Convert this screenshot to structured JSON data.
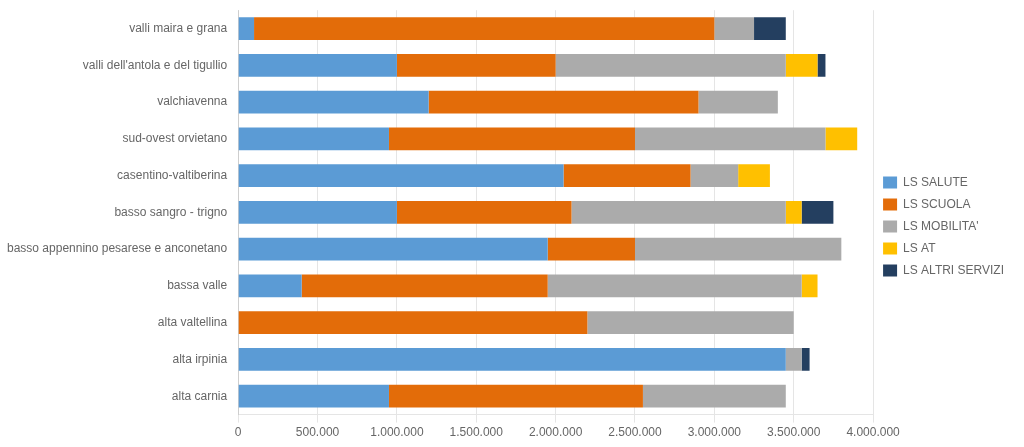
{
  "chart_data": {
    "type": "bar",
    "orientation": "horizontal",
    "stacked": true,
    "categories": [
      "valli maira e grana",
      "valli dell'antola e del tigullio",
      "valchiavenna",
      "sud-ovest orvietano",
      "casentino-valtiberina",
      "basso sangro - trigno",
      "basso appennino pesarese e anconetano",
      "bassa valle",
      "alta valtellina",
      "alta irpinia",
      "alta carnia"
    ],
    "series": [
      {
        "name": "LS SALUTE",
        "color": "#5B9BD5",
        "values": [
          100000,
          1000000,
          1200000,
          950000,
          2050000,
          1000000,
          1950000,
          400000,
          0,
          3450000,
          950000
        ]
      },
      {
        "name": "LS SCUOLA",
        "color": "#E36C09",
        "values": [
          2900000,
          1000000,
          1700000,
          1550000,
          800000,
          1100000,
          550000,
          1550000,
          2200000,
          0,
          1600000
        ]
      },
      {
        "name": "LS MOBILITA'",
        "color": "#ABABAB",
        "values": [
          250000,
          1450000,
          500000,
          1200000,
          300000,
          1350000,
          1300000,
          1600000,
          1300000,
          100000,
          900000
        ]
      },
      {
        "name": "LS AT",
        "color": "#FFC000",
        "values": [
          0,
          200000,
          0,
          200000,
          200000,
          100000,
          0,
          100000,
          0,
          0,
          0
        ]
      },
      {
        "name": "LS ALTRI SERVIZI",
        "color": "#243F60",
        "values": [
          200000,
          50000,
          0,
          0,
          0,
          200000,
          0,
          0,
          0,
          50000,
          0
        ]
      }
    ],
    "xlim": [
      0,
      4000000
    ],
    "xticks": [
      0,
      {
        "value": 500000,
        "label": "500.000"
      },
      {
        "value": 1000000,
        "label": "1.000.000"
      },
      {
        "value": 1500000,
        "label": "1.500.000"
      },
      {
        "value": 2000000,
        "label": "2.000.000"
      },
      {
        "value": 2500000,
        "label": "2.500.000"
      },
      {
        "value": 3000000,
        "label": "3.000.000"
      },
      {
        "value": 3500000,
        "label": "3.500.000"
      },
      {
        "value": 4000000,
        "label": "4.000.000"
      }
    ],
    "grid": true,
    "legend": "right"
  }
}
